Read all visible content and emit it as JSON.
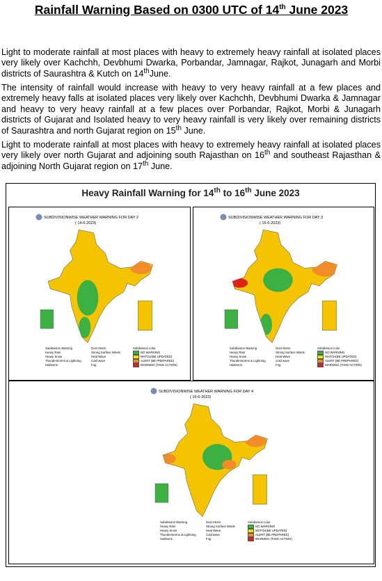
{
  "header": {
    "title": [
      "Rainfall Warning Based on 0300 UTC  of 14",
      "th",
      " June 2023"
    ]
  },
  "paragraphs": [
    [
      "Light to moderate rainfall at most places with heavy to extremely heavy rainfall at isolated places very likely over Kachchh, Devbhumi Dwarka, Porbandar, Jamnagar, Rajkot, Junagarh and Morbi districts of Saurashtra & Kutch on 14",
      "th",
      "June."
    ],
    [
      "The intensity of rainfall would increase with heavy to very heavy rainfall at a few places and extremely heavy falls at isolated places very likely over Kachchh, Devbhumi Dwarka & Jamnagar and heavy to very heavy rainfall at a few places over Porbandar, Rajkot, Morbi & Junagarh districts of Gujarat and Isolated heavy to very heavy rainfall is very likely over remaining districts of Saurashtra and north Gujarat region on 15",
      "th",
      " June."
    ],
    [
      "Light to moderate rainfall at most places with heavy to extremely heavy rainfall at isolated places very likely over north Gujarat and adjoining south Rajasthan on 16",
      "th",
      " and southeast Rajasthan & adjoining North Gujarat region on 17",
      "th",
      " June."
    ]
  ],
  "figure": {
    "heading": [
      "Heavy Rainfall Warning for 14",
      "th",
      " to 16",
      "th",
      " June 2023"
    ],
    "maps": [
      {
        "title": "SUBDIVISIONWISE WEATHER WARNING FOR DAY 2",
        "date": "( 14-6-2023)"
      },
      {
        "title": "SUBDIVISIONWISE WEATHER WARNING FOR DAY 3",
        "date": "( 15-6-2023)"
      },
      {
        "title": "SUBDIVISIONWISE WEATHER WARNING FOR DAY 4",
        "date": "( 16-6-2023)"
      }
    ],
    "legend_left": [
      "Subdivision Warning",
      "Heavy Rain",
      "Heavy Snow",
      "Thunderstorms & Lightning",
      "Hailstorm"
    ],
    "legend_mid": [
      "Dust Storm",
      "Strong Surface Winds",
      "Heat Wave",
      "Cold wave",
      "Fog"
    ],
    "legend_right": {
      "title": "Subdivision color",
      "items": [
        {
          "label": "NO WARNING",
          "color": "#3cb043"
        },
        {
          "label": "WATCH(BE UPDATED)",
          "color": "#f2e600"
        },
        {
          "label": "ALERT (BE PREPARED)",
          "color": "#f28c28"
        },
        {
          "label": "WARNING (TAKE ACTION)",
          "color": "#e0201b"
        }
      ]
    }
  }
}
